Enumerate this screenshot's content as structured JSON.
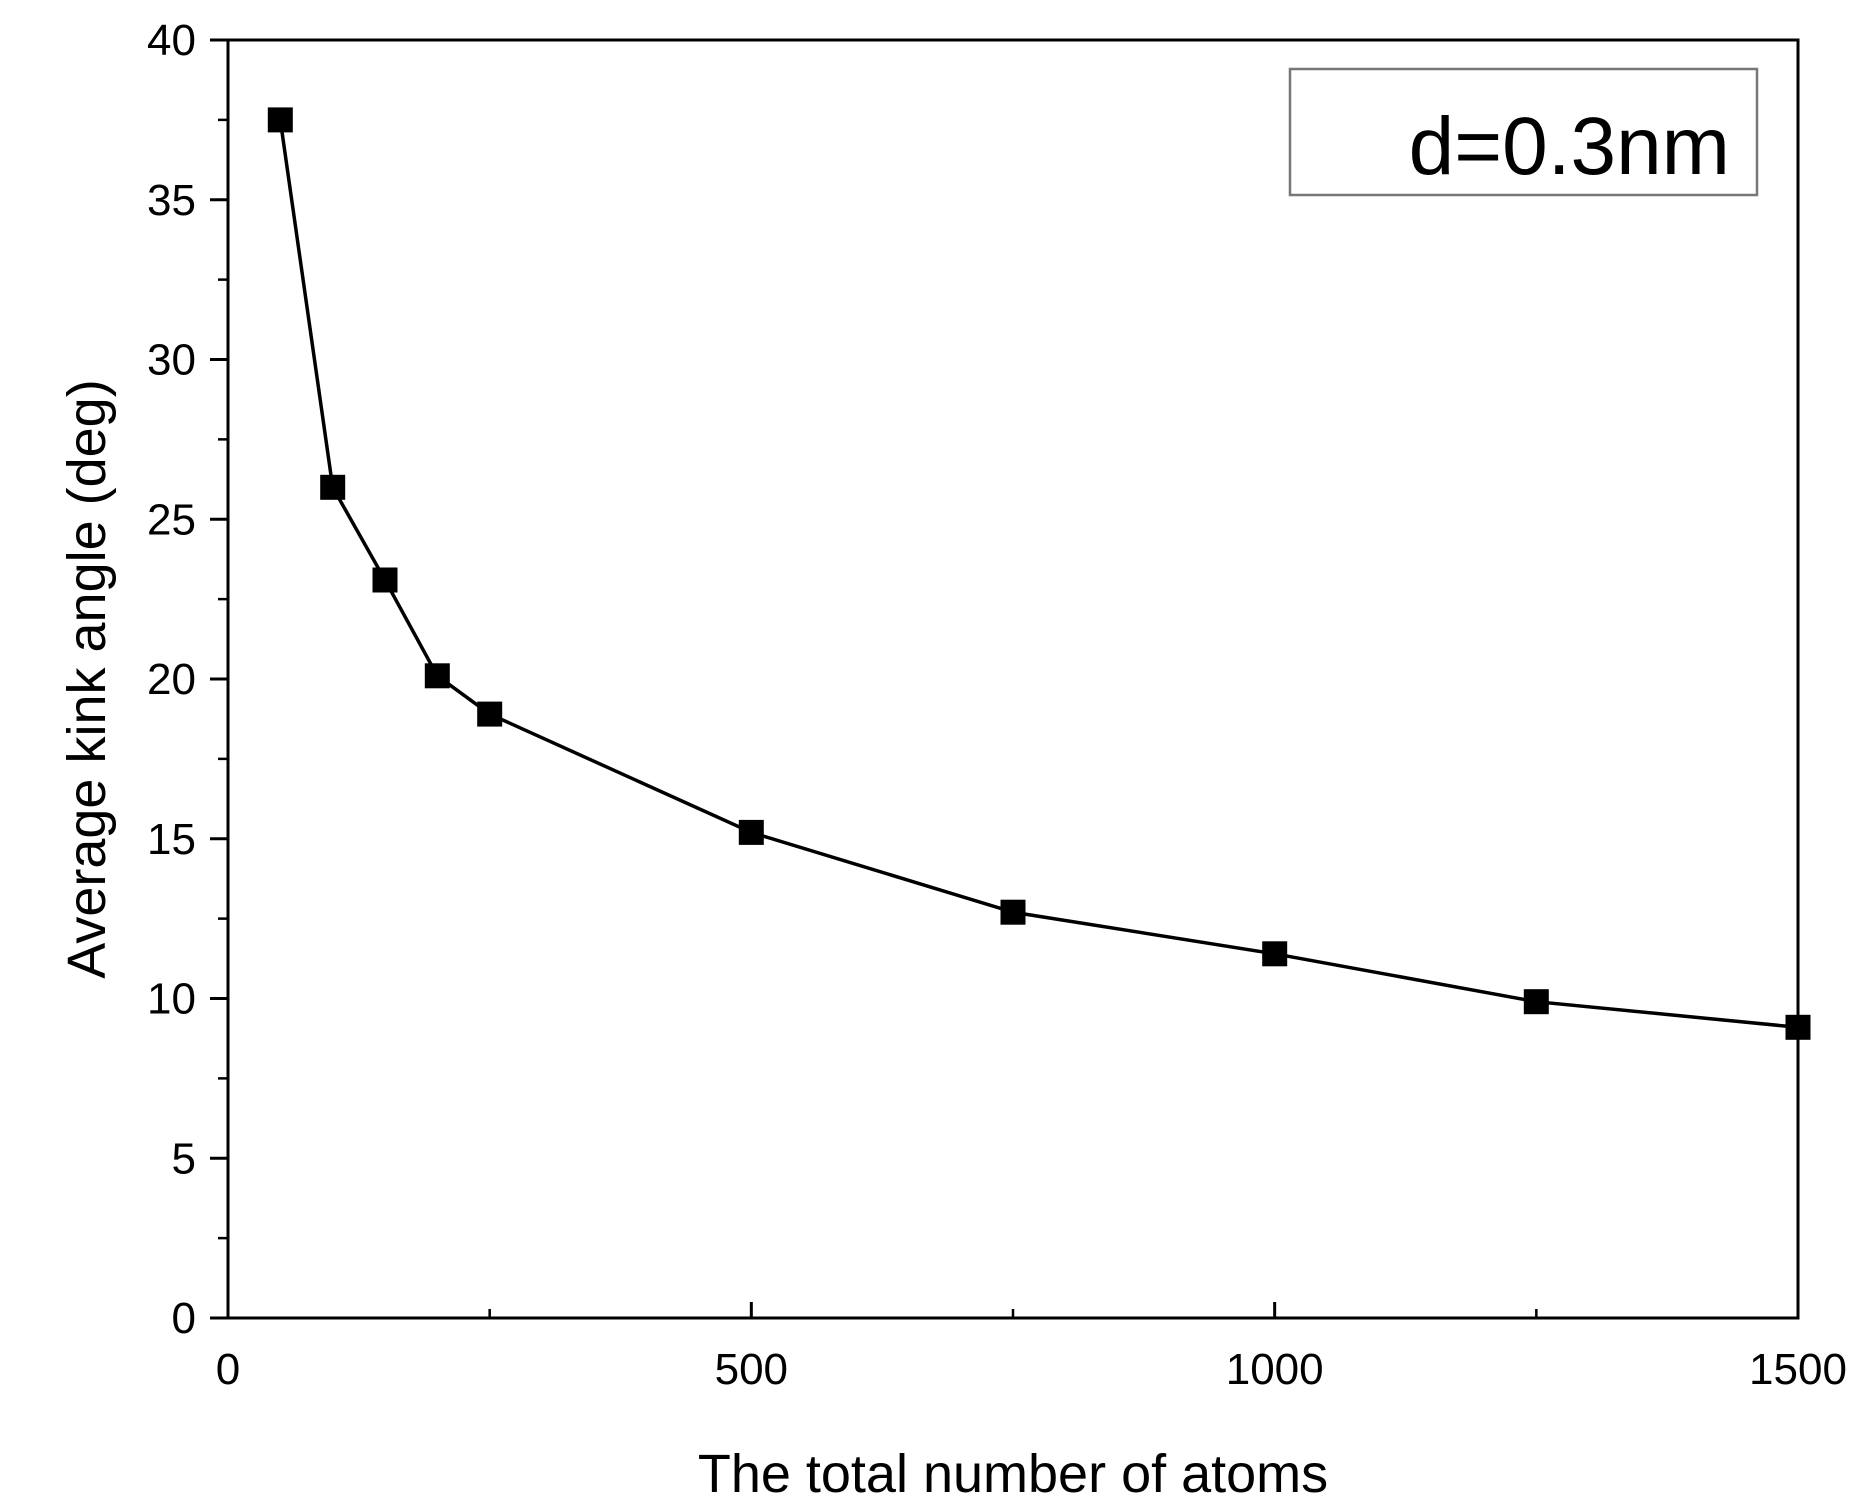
{
  "chart_data": {
    "type": "line",
    "title": "",
    "xlabel": "The total number of atoms",
    "ylabel": "Average kink angle (deg)",
    "xlim": [
      0,
      1500
    ],
    "ylim": [
      0,
      40
    ],
    "x_ticks": [
      0,
      500,
      1000,
      1500
    ],
    "y_ticks": [
      0,
      5,
      10,
      15,
      20,
      25,
      30,
      35,
      40
    ],
    "grid": false,
    "legend": {
      "text": "d=0.3nm",
      "placement": "top-right"
    },
    "series": [
      {
        "marker": "square",
        "color": "#000000",
        "x": [
          50,
          100,
          150,
          200,
          250,
          500,
          750,
          1000,
          1250,
          1500
        ],
        "y": [
          37.5,
          26.0,
          23.1,
          20.1,
          18.9,
          15.2,
          12.7,
          11.4,
          9.9,
          9.1
        ]
      }
    ]
  }
}
